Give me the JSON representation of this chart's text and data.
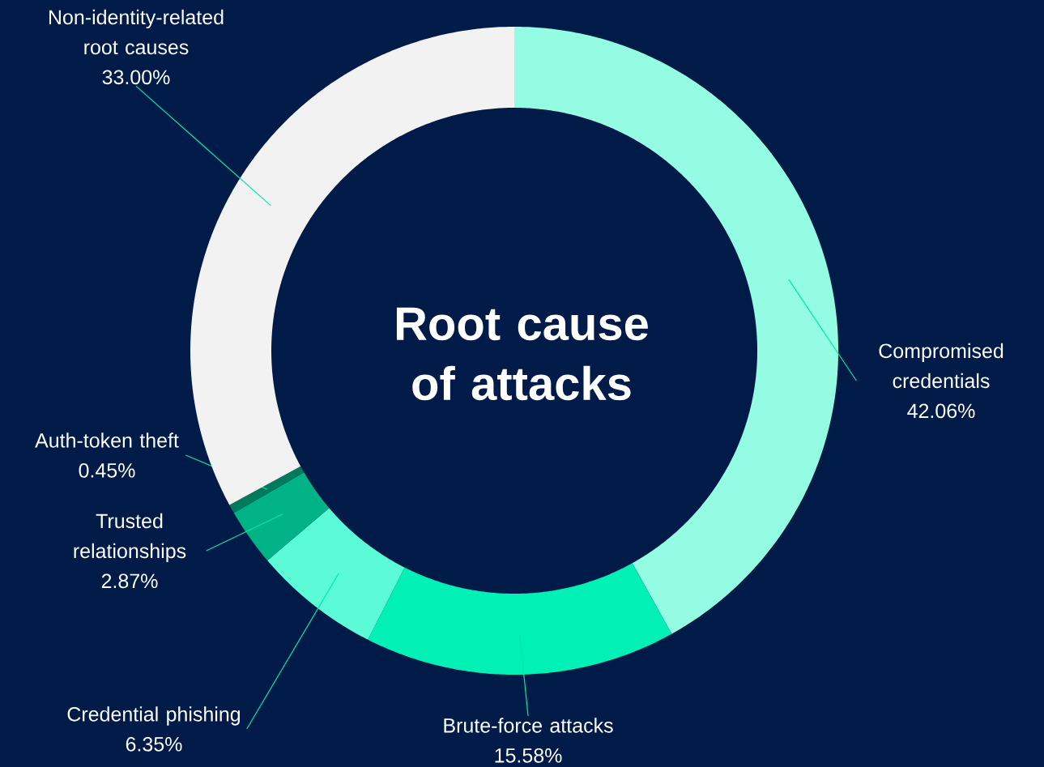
{
  "chart_data": {
    "type": "donut",
    "title": "Root cause of attacks",
    "categories": [
      "Compromised credentials",
      "Brute-force attacks",
      "Credential phishing",
      "Trusted relationships",
      "Auth-token theft",
      "Non-identity-related root causes"
    ],
    "values": [
      42.06,
      15.58,
      6.35,
      2.87,
      0.45,
      33.0
    ],
    "value_labels": [
      "42.06%",
      "15.58%",
      "6.35%",
      "2.87%",
      "0.45%",
      "33.00%"
    ],
    "colors": [
      "#94fce2",
      "#00f0b5",
      "#5cfbd8",
      "#00b386",
      "#007a5c",
      "#f2f2f2"
    ]
  }
}
